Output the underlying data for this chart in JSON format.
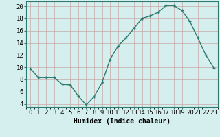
{
  "x": [
    0,
    1,
    2,
    3,
    4,
    5,
    6,
    7,
    8,
    9,
    10,
    11,
    12,
    13,
    14,
    15,
    16,
    17,
    18,
    19,
    20,
    21,
    22,
    23
  ],
  "y": [
    9.8,
    8.3,
    8.3,
    8.3,
    7.2,
    7.1,
    5.3,
    3.8,
    5.2,
    7.5,
    11.3,
    13.5,
    14.8,
    16.4,
    18.0,
    18.4,
    19.0,
    20.1,
    20.1,
    19.3,
    17.5,
    14.8,
    12.0,
    9.9
  ],
  "line_color": "#2d7a6e",
  "marker": "+",
  "marker_size": 3,
  "marker_lw": 1.0,
  "bg_color": "#d5eeee",
  "grid_color_major": "#c9a8a8",
  "grid_color_minor": "#d8bfbf",
  "xlabel": "Humidex (Indice chaleur)",
  "ylim": [
    3.5,
    20.8
  ],
  "xlim": [
    -0.5,
    23.5
  ],
  "yticks": [
    4,
    6,
    8,
    10,
    12,
    14,
    16,
    18,
    20
  ],
  "xtick_labels": [
    "0",
    "1",
    "2",
    "3",
    "4",
    "5",
    "6",
    "7",
    "8",
    "9",
    "10",
    "11",
    "12",
    "13",
    "14",
    "15",
    "16",
    "17",
    "18",
    "19",
    "20",
    "21",
    "22",
    "23"
  ],
  "linewidth": 1.0,
  "xlabel_fontsize": 7,
  "tick_fontsize": 6.5,
  "spine_color": "#2d7a6e"
}
